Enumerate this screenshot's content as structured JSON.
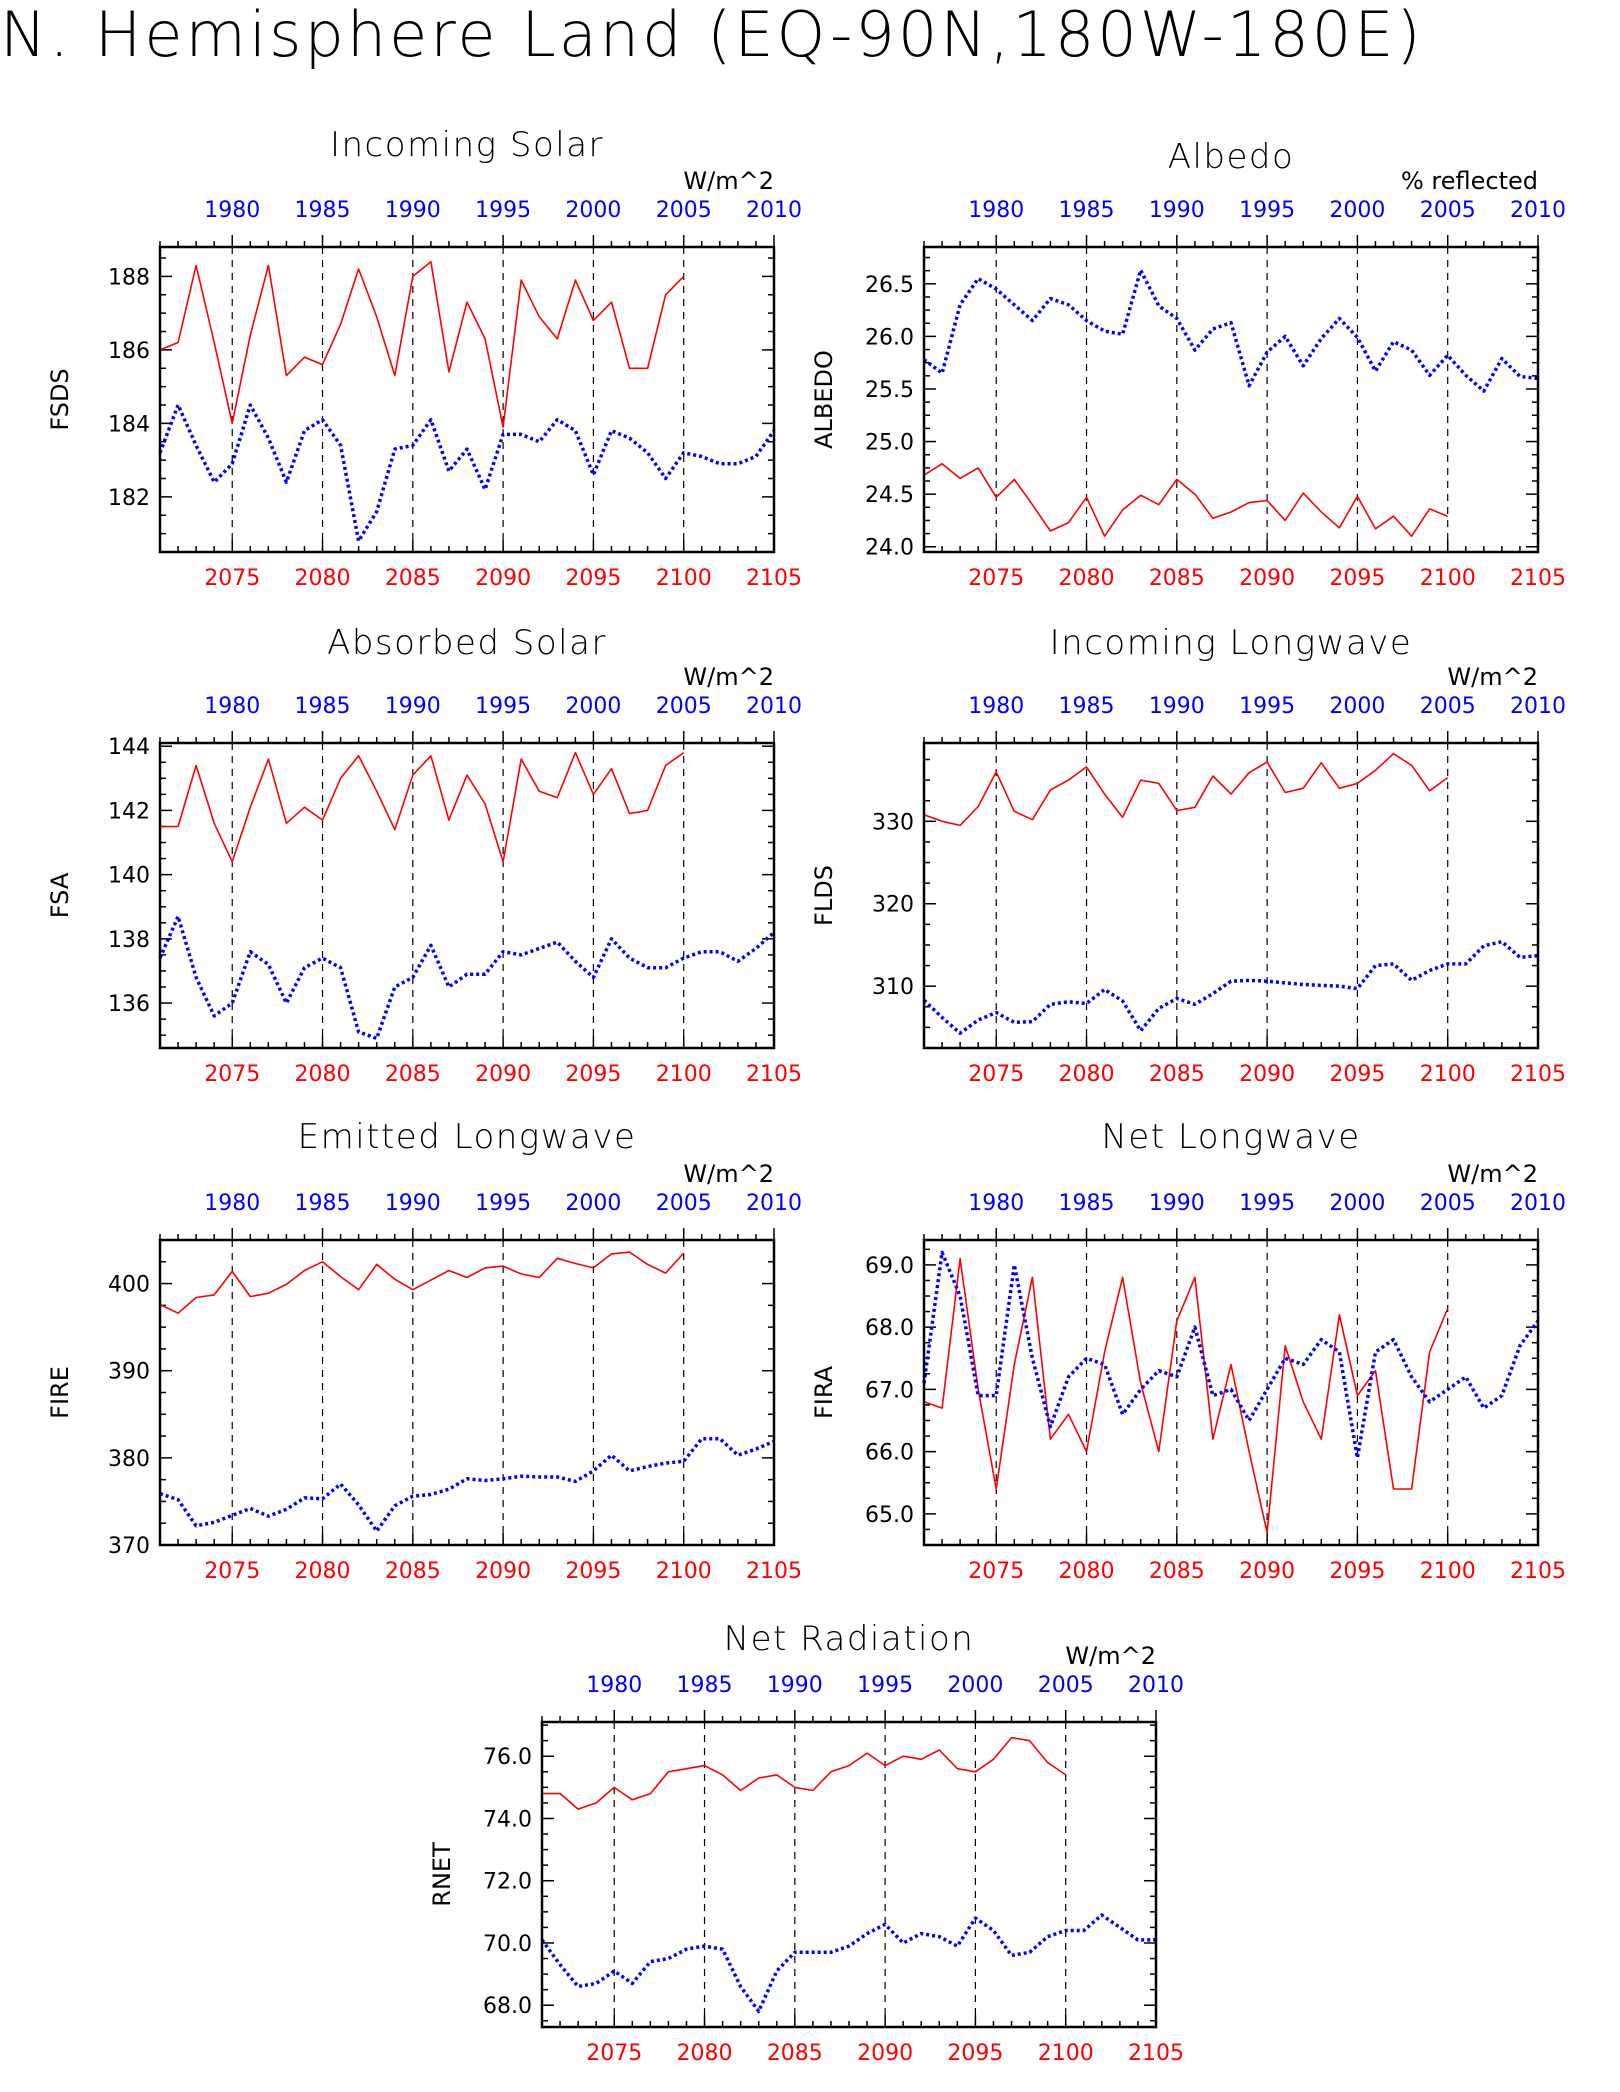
{
  "title": "N. Hemisphere Land (EQ-90N,180W-180E)",
  "colors": {
    "model": "#ff0000",
    "obs": "#0000ff",
    "axis": "#000000"
  },
  "chart_data": [
    {
      "type": "line",
      "title": "Incoming Solar",
      "units": "W/m^2",
      "ylabel": "FSDS",
      "ylim": [
        180.5,
        188.8
      ],
      "yticks": [
        182,
        184,
        186,
        188
      ],
      "yfmt": 0,
      "x_bottom": {
        "range": [
          2071,
          2105
        ],
        "ticks": [
          2075,
          2080,
          2085,
          2090,
          2095,
          2100,
          2105
        ]
      },
      "x_top": {
        "range": [
          1976,
          2010
        ],
        "ticks": [
          1980,
          1985,
          1990,
          1995,
          2000,
          2005,
          2010
        ]
      },
      "series": [
        {
          "axis": "bottom",
          "style": "solid",
          "x0": 2071,
          "values": [
            186.0,
            186.2,
            188.3,
            186.2,
            184.0,
            186.4,
            188.3,
            185.3,
            185.8,
            185.6,
            186.7,
            188.2,
            186.9,
            185.3,
            188.0,
            188.4,
            185.4,
            187.3,
            186.3,
            183.9,
            187.9,
            186.9,
            186.3,
            187.9,
            186.8,
            187.3,
            185.5,
            185.5,
            187.5,
            188.0
          ]
        },
        {
          "axis": "top",
          "style": "dotted",
          "x0": 1976,
          "values": [
            183.2,
            184.5,
            183.4,
            182.4,
            182.9,
            184.5,
            183.6,
            182.4,
            183.8,
            184.1,
            183.4,
            180.8,
            181.6,
            183.3,
            183.4,
            184.1,
            182.7,
            183.3,
            182.2,
            183.7,
            183.7,
            183.5,
            184.1,
            183.8,
            182.6,
            183.8,
            183.6,
            183.2,
            182.5,
            183.2,
            183.1,
            182.9,
            182.9,
            183.1,
            183.8
          ]
        }
      ]
    },
    {
      "type": "line",
      "title": "Albedo",
      "units": "% reflected",
      "ylabel": "ALBEDO",
      "ylim": [
        23.95,
        26.85
      ],
      "yticks": [
        24.0,
        24.5,
        25.0,
        25.5,
        26.0,
        26.5
      ],
      "yfmt": 1,
      "x_bottom": {
        "range": [
          2071,
          2105
        ],
        "ticks": [
          2075,
          2080,
          2085,
          2090,
          2095,
          2100,
          2105
        ]
      },
      "x_top": {
        "range": [
          1976,
          2010
        ],
        "ticks": [
          1980,
          1985,
          1990,
          1995,
          2000,
          2005,
          2010
        ]
      },
      "series": [
        {
          "axis": "bottom",
          "style": "solid",
          "x0": 2071,
          "values": [
            24.68,
            24.79,
            24.65,
            24.75,
            24.47,
            24.64,
            24.4,
            24.15,
            24.23,
            24.47,
            24.1,
            24.35,
            24.49,
            24.4,
            24.64,
            24.5,
            24.27,
            24.33,
            24.42,
            24.44,
            24.25,
            24.51,
            24.33,
            24.18,
            24.48,
            24.17,
            24.29,
            24.1,
            24.36,
            24.29
          ]
        },
        {
          "axis": "top",
          "style": "dotted",
          "x0": 1976,
          "values": [
            25.78,
            25.65,
            26.3,
            26.55,
            26.45,
            26.3,
            26.15,
            26.36,
            26.3,
            26.15,
            26.05,
            26.02,
            26.63,
            26.29,
            26.17,
            25.87,
            26.07,
            26.13,
            25.53,
            25.85,
            26.0,
            25.72,
            25.98,
            26.17,
            25.99,
            25.67,
            25.95,
            25.87,
            25.63,
            25.82,
            25.63,
            25.48,
            25.79,
            25.62,
            25.6
          ]
        }
      ]
    },
    {
      "type": "line",
      "title": "Absorbed Solar",
      "units": "W/m^2",
      "ylabel": "FSA",
      "ylim": [
        134.6,
        144.1
      ],
      "yticks": [
        136,
        138,
        140,
        142,
        144
      ],
      "yfmt": 0,
      "x_bottom": {
        "range": [
          2071,
          2105
        ],
        "ticks": [
          2075,
          2080,
          2085,
          2090,
          2095,
          2100,
          2105
        ]
      },
      "x_top": {
        "range": [
          1976,
          2010
        ],
        "ticks": [
          1980,
          1985,
          1990,
          1995,
          2000,
          2005,
          2010
        ]
      },
      "series": [
        {
          "axis": "bottom",
          "style": "solid",
          "x0": 2071,
          "values": [
            141.5,
            141.5,
            143.4,
            141.6,
            140.4,
            142.1,
            143.6,
            141.6,
            142.1,
            141.7,
            143.0,
            143.7,
            142.6,
            141.4,
            143.1,
            143.7,
            141.7,
            143.1,
            142.2,
            140.4,
            143.6,
            142.6,
            142.4,
            143.8,
            142.5,
            143.3,
            141.9,
            142.0,
            143.4,
            143.8
          ]
        },
        {
          "axis": "top",
          "style": "dotted",
          "x0": 1976,
          "values": [
            137.4,
            138.7,
            136.8,
            135.6,
            136.0,
            137.6,
            137.2,
            136.0,
            137.1,
            137.4,
            137.1,
            135.1,
            134.9,
            136.5,
            136.8,
            137.8,
            136.5,
            136.9,
            136.9,
            137.6,
            137.5,
            137.7,
            137.9,
            137.3,
            136.8,
            138.0,
            137.4,
            137.1,
            137.1,
            137.4,
            137.6,
            137.6,
            137.3,
            137.7,
            138.2
          ]
        }
      ]
    },
    {
      "type": "line",
      "title": "Incoming Longwave",
      "units": "W/m^2",
      "ylabel": "FLDS",
      "ylim": [
        302.5,
        339.5
      ],
      "yticks": [
        310,
        320,
        330
      ],
      "yfmt": 0,
      "x_bottom": {
        "range": [
          2071,
          2105
        ],
        "ticks": [
          2075,
          2080,
          2085,
          2090,
          2095,
          2100,
          2105
        ]
      },
      "x_top": {
        "range": [
          1976,
          2010
        ],
        "ticks": [
          1980,
          1985,
          1990,
          1995,
          2000,
          2005,
          2010
        ]
      },
      "series": [
        {
          "axis": "bottom",
          "style": "solid",
          "x0": 2071,
          "values": [
            330.8,
            330.0,
            329.5,
            331.8,
            336.0,
            331.2,
            330.2,
            333.8,
            335.0,
            336.6,
            333.3,
            330.5,
            335.0,
            334.6,
            331.3,
            331.7,
            335.5,
            333.3,
            335.9,
            337.2,
            333.5,
            334.0,
            337.1,
            334.0,
            334.6,
            336.2,
            338.2,
            336.8,
            333.7,
            335.3
          ]
        },
        {
          "axis": "top",
          "style": "dotted",
          "x0": 1976,
          "values": [
            308.3,
            306.2,
            304.3,
            305.9,
            306.8,
            305.6,
            305.7,
            307.8,
            308.1,
            307.9,
            309.6,
            308.2,
            304.6,
            307.3,
            308.5,
            307.8,
            309.1,
            310.6,
            310.7,
            310.6,
            310.4,
            310.2,
            310.1,
            310.0,
            309.7,
            312.5,
            312.7,
            310.7,
            311.9,
            312.7,
            312.7,
            314.9,
            315.4,
            313.5,
            313.7
          ]
        }
      ]
    },
    {
      "type": "line",
      "title": "Emitted Longwave",
      "units": "W/m^2",
      "ylabel": "FIRE",
      "ylim": [
        370,
        405
      ],
      "yticks": [
        370,
        380,
        390,
        400
      ],
      "yfmt": 0,
      "x_bottom": {
        "range": [
          2071,
          2105
        ],
        "ticks": [
          2075,
          2080,
          2085,
          2090,
          2095,
          2100,
          2105
        ]
      },
      "x_top": {
        "range": [
          1976,
          2010
        ],
        "ticks": [
          1980,
          1985,
          1990,
          1995,
          2000,
          2005,
          2010
        ]
      },
      "series": [
        {
          "axis": "bottom",
          "style": "solid",
          "x0": 2071,
          "values": [
            397.6,
            396.6,
            398.4,
            398.7,
            401.4,
            398.5,
            398.9,
            399.9,
            401.5,
            402.5,
            400.8,
            399.3,
            402.2,
            400.5,
            399.3,
            400.4,
            401.5,
            400.7,
            401.8,
            402.0,
            401.1,
            400.7,
            402.9,
            402.3,
            401.8,
            403.4,
            403.6,
            402.2,
            401.2,
            403.5
          ]
        },
        {
          "axis": "top",
          "style": "dotted",
          "x0": 1976,
          "values": [
            375.9,
            375.2,
            372.2,
            372.6,
            373.4,
            374.2,
            373.3,
            374.1,
            375.4,
            375.3,
            377.0,
            374.6,
            371.6,
            374.5,
            375.6,
            375.8,
            376.4,
            377.6,
            377.4,
            377.6,
            377.9,
            377.8,
            377.8,
            377.3,
            378.5,
            380.3,
            378.5,
            379.0,
            379.4,
            379.6,
            382.2,
            382.2,
            380.3,
            381.0,
            381.9
          ]
        }
      ]
    },
    {
      "type": "line",
      "title": "Net Longwave",
      "units": "W/m^2",
      "ylabel": "FIRA",
      "ylim": [
        64.5,
        69.4
      ],
      "yticks": [
        65.0,
        66.0,
        67.0,
        68.0,
        69.0
      ],
      "yfmt": 1,
      "x_bottom": {
        "range": [
          2071,
          2105
        ],
        "ticks": [
          2075,
          2080,
          2085,
          2090,
          2095,
          2100,
          2105
        ]
      },
      "x_top": {
        "range": [
          1976,
          2010
        ],
        "ticks": [
          1980,
          1985,
          1990,
          1995,
          2000,
          2005,
          2010
        ]
      },
      "series": [
        {
          "axis": "bottom",
          "style": "solid",
          "x0": 2071,
          "values": [
            66.8,
            66.7,
            69.1,
            67.0,
            65.4,
            67.4,
            68.8,
            66.2,
            66.6,
            66.0,
            67.6,
            68.8,
            67.1,
            66.0,
            68.1,
            68.8,
            66.2,
            67.4,
            66.0,
            64.7,
            67.7,
            66.8,
            66.2,
            68.2,
            66.9,
            67.3,
            65.4,
            65.4,
            67.6,
            68.3
          ]
        },
        {
          "axis": "top",
          "style": "dotted",
          "x0": 1976,
          "values": [
            67.1,
            69.2,
            68.5,
            66.9,
            66.9,
            69.0,
            67.5,
            66.4,
            67.2,
            67.5,
            67.4,
            66.6,
            67.0,
            67.3,
            67.2,
            68.0,
            66.9,
            67.0,
            66.5,
            67.0,
            67.5,
            67.4,
            67.8,
            67.6,
            65.9,
            67.6,
            67.8,
            67.2,
            66.8,
            67.0,
            67.2,
            66.7,
            66.9,
            67.7,
            68.1
          ]
        }
      ]
    },
    {
      "type": "line",
      "title": "Net Radiation",
      "units": "W/m^2",
      "ylabel": "RNET",
      "ylim": [
        67.3,
        77.1
      ],
      "yticks": [
        68.0,
        70.0,
        72.0,
        74.0,
        76.0
      ],
      "yfmt": 1,
      "x_bottom": {
        "range": [
          2071,
          2105
        ],
        "ticks": [
          2075,
          2080,
          2085,
          2090,
          2095,
          2100,
          2105
        ]
      },
      "x_top": {
        "range": [
          1976,
          2010
        ],
        "ticks": [
          1980,
          1985,
          1990,
          1995,
          2000,
          2005,
          2010
        ]
      },
      "series": [
        {
          "axis": "bottom",
          "style": "solid",
          "x0": 2071,
          "values": [
            74.8,
            74.8,
            74.3,
            74.5,
            75.0,
            74.6,
            74.8,
            75.5,
            75.6,
            75.7,
            75.4,
            74.9,
            75.3,
            75.4,
            75.0,
            74.9,
            75.5,
            75.7,
            76.1,
            75.7,
            76.0,
            75.9,
            76.2,
            75.6,
            75.5,
            75.9,
            76.6,
            76.5,
            75.8,
            75.4
          ]
        },
        {
          "axis": "top",
          "style": "dotted",
          "x0": 1976,
          "values": [
            70.1,
            69.3,
            68.6,
            68.7,
            69.1,
            68.7,
            69.4,
            69.5,
            69.8,
            69.9,
            69.8,
            68.6,
            67.8,
            69.1,
            69.7,
            69.7,
            69.7,
            69.9,
            70.3,
            70.6,
            70.0,
            70.3,
            70.2,
            69.9,
            70.8,
            70.4,
            69.6,
            69.7,
            70.2,
            70.4,
            70.4,
            70.9,
            70.5,
            70.1,
            70.1
          ]
        }
      ]
    }
  ]
}
